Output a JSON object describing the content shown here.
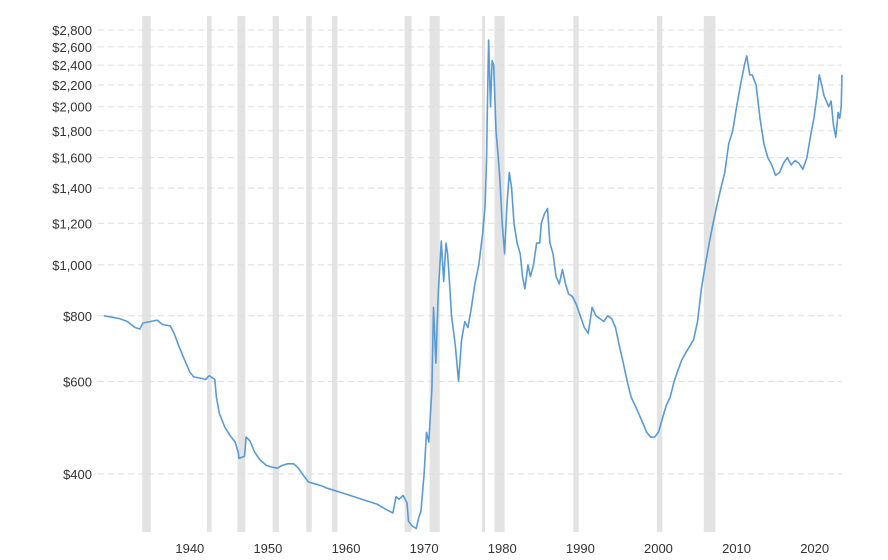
{
  "chart_data": {
    "type": "line",
    "title": "",
    "xlabel": "",
    "ylabel": "",
    "y_scale": "log",
    "xlim": [
      1928.5,
      2023.5
    ],
    "ylim": [
      310,
      2800
    ],
    "x_ticks": [
      1940,
      1950,
      1960,
      1970,
      1980,
      1990,
      2000,
      2010,
      2020
    ],
    "x_tick_labels": [
      "1940",
      "1950",
      "1960",
      "1970",
      "1980",
      "1990",
      "2000",
      "2010",
      "2020"
    ],
    "y_ticks": [
      400,
      600,
      800,
      1000,
      1200,
      1400,
      1600,
      1800,
      2000,
      2200,
      2400,
      2600,
      2800
    ],
    "y_tick_labels": [
      "$400",
      "$600",
      "$800",
      "$1,000",
      "$1,200",
      "$1,400",
      "$1,600",
      "$1,800",
      "$2,000",
      "$2,200",
      "$2,400",
      "$2,600",
      "$2,800"
    ],
    "grid": "horizontal dashed",
    "recession_shading": [
      [
        1933.9,
        1935.0
      ],
      [
        1942.2,
        1942.8
      ],
      [
        1946.1,
        1947.1
      ],
      [
        1950.6,
        1951.4
      ],
      [
        1954.9,
        1955.6
      ],
      [
        1958.2,
        1958.9
      ],
      [
        1967.5,
        1968.4
      ],
      [
        1970.7,
        1972.0
      ],
      [
        1977.4,
        1977.8
      ],
      [
        1979.0,
        1980.3
      ],
      [
        1989.1,
        1989.8
      ],
      [
        1999.8,
        2000.5
      ],
      [
        2005.8,
        2007.3
      ]
    ],
    "series": [
      {
        "line_color": "#5a9bd5",
        "points": [
          [
            1929.0,
            800
          ],
          [
            1930.0,
            795
          ],
          [
            1931.0,
            790
          ],
          [
            1932.0,
            780
          ],
          [
            1933.0,
            760
          ],
          [
            1933.6,
            755
          ],
          [
            1934.0,
            775
          ],
          [
            1935.0,
            780
          ],
          [
            1935.8,
            785
          ],
          [
            1936.5,
            770
          ],
          [
            1937.5,
            765
          ],
          [
            1938.0,
            740
          ],
          [
            1938.6,
            700
          ],
          [
            1939.3,
            660
          ],
          [
            1940.0,
            625
          ],
          [
            1940.5,
            612
          ],
          [
            1941.5,
            608
          ],
          [
            1942.0,
            605
          ],
          [
            1942.5,
            615
          ],
          [
            1943.2,
            605
          ],
          [
            1943.4,
            560
          ],
          [
            1943.8,
            520
          ],
          [
            1944.5,
            490
          ],
          [
            1945.3,
            470
          ],
          [
            1945.8,
            460
          ],
          [
            1946.2,
            440
          ],
          [
            1946.3,
            428
          ],
          [
            1947.0,
            432
          ],
          [
            1947.2,
            470
          ],
          [
            1947.7,
            462
          ],
          [
            1948.3,
            440
          ],
          [
            1949.0,
            425
          ],
          [
            1949.8,
            415
          ],
          [
            1950.5,
            412
          ],
          [
            1951.2,
            410
          ],
          [
            1951.8,
            415
          ],
          [
            1952.5,
            418
          ],
          [
            1953.3,
            418
          ],
          [
            1953.9,
            410
          ],
          [
            1954.5,
            398
          ],
          [
            1955.2,
            386
          ],
          [
            1956.0,
            383
          ],
          [
            1956.8,
            380
          ],
          [
            1957.5,
            376
          ],
          [
            1958.0,
            374
          ],
          [
            1959.0,
            370
          ],
          [
            1960.0,
            366
          ],
          [
            1961.0,
            362
          ],
          [
            1962.0,
            358
          ],
          [
            1963.0,
            354
          ],
          [
            1964.0,
            350
          ],
          [
            1965.0,
            343
          ],
          [
            1966.0,
            337
          ],
          [
            1966.4,
            362
          ],
          [
            1966.8,
            358
          ],
          [
            1967.3,
            364
          ],
          [
            1967.8,
            352
          ],
          [
            1968.0,
            325
          ],
          [
            1968.5,
            318
          ],
          [
            1969.0,
            315
          ],
          [
            1969.3,
            330
          ],
          [
            1969.6,
            340
          ],
          [
            1970.0,
            400
          ],
          [
            1970.3,
            480
          ],
          [
            1970.6,
            460
          ],
          [
            1971.0,
            580
          ],
          [
            1971.2,
            830
          ],
          [
            1971.5,
            650
          ],
          [
            1971.8,
            880
          ],
          [
            1972.2,
            1110
          ],
          [
            1972.5,
            930
          ],
          [
            1972.8,
            1100
          ],
          [
            1973.0,
            1050
          ],
          [
            1973.3,
            900
          ],
          [
            1973.5,
            800
          ],
          [
            1974.0,
            700
          ],
          [
            1974.4,
            600
          ],
          [
            1974.8,
            720
          ],
          [
            1975.2,
            780
          ],
          [
            1975.6,
            760
          ],
          [
            1976.0,
            820
          ],
          [
            1976.5,
            920
          ],
          [
            1977.0,
            1000
          ],
          [
            1977.5,
            1150
          ],
          [
            1977.8,
            1300
          ],
          [
            1978.0,
            1600
          ],
          [
            1978.1,
            2000
          ],
          [
            1978.25,
            2680
          ],
          [
            1978.5,
            2000
          ],
          [
            1978.7,
            2450
          ],
          [
            1978.9,
            2400
          ],
          [
            1979.2,
            1800
          ],
          [
            1979.5,
            1600
          ],
          [
            1979.7,
            1450
          ],
          [
            1980.0,
            1200
          ],
          [
            1980.3,
            1050
          ],
          [
            1980.6,
            1300
          ],
          [
            1980.9,
            1500
          ],
          [
            1981.2,
            1400
          ],
          [
            1981.5,
            1200
          ],
          [
            1981.9,
            1100
          ],
          [
            1982.3,
            1050
          ],
          [
            1982.6,
            950
          ],
          [
            1982.9,
            900
          ],
          [
            1983.3,
            1000
          ],
          [
            1983.6,
            950
          ],
          [
            1984.0,
            1000
          ],
          [
            1984.4,
            1100
          ],
          [
            1984.8,
            1100
          ],
          [
            1985.0,
            1200
          ],
          [
            1985.4,
            1250
          ],
          [
            1985.8,
            1280
          ],
          [
            1986.1,
            1100
          ],
          [
            1986.5,
            1050
          ],
          [
            1986.9,
            950
          ],
          [
            1987.3,
            920
          ],
          [
            1987.7,
            980
          ],
          [
            1988.1,
            920
          ],
          [
            1988.5,
            880
          ],
          [
            1989.0,
            870
          ],
          [
            1989.5,
            840
          ],
          [
            1990.0,
            800
          ],
          [
            1990.5,
            760
          ],
          [
            1991.0,
            740
          ],
          [
            1991.5,
            830
          ],
          [
            1992.0,
            800
          ],
          [
            1992.5,
            790
          ],
          [
            1993.0,
            780
          ],
          [
            1993.5,
            800
          ],
          [
            1994.0,
            790
          ],
          [
            1994.5,
            760
          ],
          [
            1995.0,
            700
          ],
          [
            1995.5,
            650
          ],
          [
            1996.0,
            600
          ],
          [
            1996.5,
            560
          ],
          [
            1997.0,
            540
          ],
          [
            1997.5,
            520
          ],
          [
            1998.0,
            500
          ],
          [
            1998.5,
            480
          ],
          [
            1999.0,
            470
          ],
          [
            1999.5,
            470
          ],
          [
            2000.0,
            480
          ],
          [
            2000.5,
            510
          ],
          [
            2001.0,
            540
          ],
          [
            2001.5,
            560
          ],
          [
            2002.0,
            600
          ],
          [
            2002.5,
            630
          ],
          [
            2003.0,
            660
          ],
          [
            2003.5,
            680
          ],
          [
            2004.0,
            700
          ],
          [
            2004.5,
            720
          ],
          [
            2005.0,
            780
          ],
          [
            2005.5,
            900
          ],
          [
            2006.0,
            1000
          ],
          [
            2006.5,
            1100
          ],
          [
            2007.0,
            1200
          ],
          [
            2007.5,
            1300
          ],
          [
            2008.0,
            1400
          ],
          [
            2008.5,
            1500
          ],
          [
            2009.0,
            1700
          ],
          [
            2009.5,
            1800
          ],
          [
            2010.0,
            2000
          ],
          [
            2010.5,
            2200
          ],
          [
            2011.0,
            2400
          ],
          [
            2011.3,
            2500
          ],
          [
            2011.7,
            2300
          ],
          [
            2012.0,
            2300
          ],
          [
            2012.5,
            2200
          ],
          [
            2013.0,
            1900
          ],
          [
            2013.5,
            1700
          ],
          [
            2014.0,
            1600
          ],
          [
            2014.5,
            1550
          ],
          [
            2015.0,
            1480
          ],
          [
            2015.5,
            1500
          ],
          [
            2016.0,
            1560
          ],
          [
            2016.5,
            1600
          ],
          [
            2017.0,
            1550
          ],
          [
            2017.5,
            1580
          ],
          [
            2018.0,
            1560
          ],
          [
            2018.5,
            1520
          ],
          [
            2019.0,
            1600
          ],
          [
            2019.3,
            1700
          ],
          [
            2019.6,
            1800
          ],
          [
            2019.9,
            1900
          ],
          [
            2020.3,
            2100
          ],
          [
            2020.6,
            2300
          ],
          [
            2020.9,
            2200
          ],
          [
            2021.2,
            2100
          ],
          [
            2021.5,
            2050
          ],
          [
            2021.8,
            2000
          ],
          [
            2022.1,
            2050
          ],
          [
            2022.4,
            1850
          ],
          [
            2022.7,
            1750
          ],
          [
            2023.0,
            1950
          ],
          [
            2023.2,
            1900
          ],
          [
            2023.4,
            2000
          ],
          [
            2023.5,
            2300
          ]
        ]
      }
    ]
  }
}
